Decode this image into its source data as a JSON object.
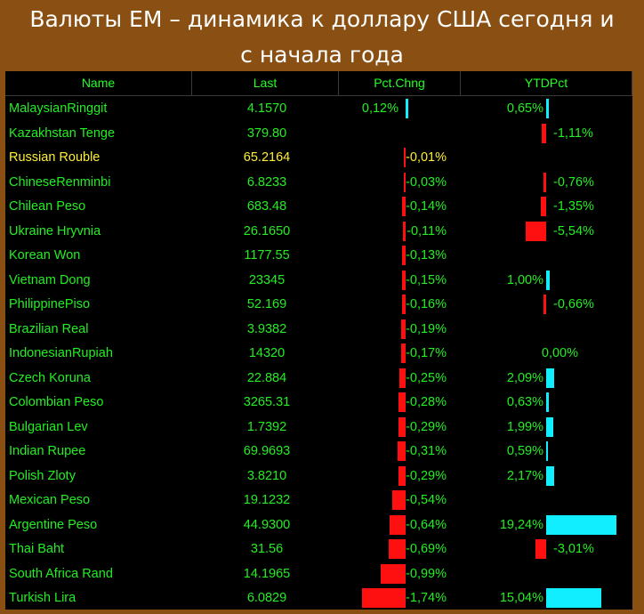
{
  "title_line1": "Валюты ЕМ – динамика к доллару США сегодня и",
  "title_line2": "с начала года",
  "columns": [
    "Name",
    "Last",
    "Pct.Chng",
    "YTDPct"
  ],
  "colors": {
    "background": "#8a4f12",
    "panel": "#000000",
    "text_green": "#22ee22",
    "highlight_yellow": "#ffee33",
    "negative_bar": "#ff1010",
    "positive_bar": "#11eeff"
  },
  "rows": [
    {
      "name": "MalaysianRinggit",
      "last": "4.1570",
      "pct": "0,12%",
      "pct_value": 0.12,
      "ytd": "0,65%",
      "ytd_value": 0.65
    },
    {
      "name": "Kazakhstan Tenge",
      "last": "379.80",
      "pct": "",
      "pct_value": 0,
      "ytd": "-1,11%",
      "ytd_value": -1.11
    },
    {
      "name": "Russian Rouble",
      "last": "65.2164",
      "pct": "-0,01%",
      "pct_value": -0.01,
      "ytd": "",
      "ytd_value": 0,
      "highlight": true
    },
    {
      "name": "ChineseRenminbi",
      "last": "6.8233",
      "pct": "-0,03%",
      "pct_value": -0.03,
      "ytd": "-0,76%",
      "ytd_value": -0.76
    },
    {
      "name": "Chilean Peso",
      "last": "683.48",
      "pct": "-0,14%",
      "pct_value": -0.14,
      "ytd": "-1,35%",
      "ytd_value": -1.35
    },
    {
      "name": "Ukraine Hryvnia",
      "last": "26.1650",
      "pct": "-0,11%",
      "pct_value": -0.11,
      "ytd": "-5,54%",
      "ytd_value": -5.54
    },
    {
      "name": "Korean Won",
      "last": "1177.55",
      "pct": "-0,13%",
      "pct_value": -0.13,
      "ytd": "",
      "ytd_value": 0
    },
    {
      "name": "Vietnam Dong",
      "last": "23345",
      "pct": "-0,15%",
      "pct_value": -0.15,
      "ytd": "1,00%",
      "ytd_value": 1.0
    },
    {
      "name": "PhilippinePiso",
      "last": "52.169",
      "pct": "-0,16%",
      "pct_value": -0.16,
      "ytd": "-0,66%",
      "ytd_value": -0.66
    },
    {
      "name": "Brazilian Real",
      "last": "3.9382",
      "pct": "-0,19%",
      "pct_value": -0.19,
      "ytd": "",
      "ytd_value": 0
    },
    {
      "name": "IndonesianRupiah",
      "last": "14320",
      "pct": "-0,17%",
      "pct_value": -0.17,
      "ytd": "0,00%",
      "ytd_value": 0.0
    },
    {
      "name": "Czech Koruna",
      "last": "22.884",
      "pct": "-0,25%",
      "pct_value": -0.25,
      "ytd": "2,09%",
      "ytd_value": 2.09
    },
    {
      "name": "Colombian Peso",
      "last": "3265.31",
      "pct": "-0,28%",
      "pct_value": -0.28,
      "ytd": "0,63%",
      "ytd_value": 0.63
    },
    {
      "name": "Bulgarian Lev",
      "last": "1.7392",
      "pct": "-0,29%",
      "pct_value": -0.29,
      "ytd": "1,99%",
      "ytd_value": 1.99
    },
    {
      "name": "Indian Rupee",
      "last": "69.9693",
      "pct": "-0,31%",
      "pct_value": -0.31,
      "ytd": "0,59%",
      "ytd_value": 0.59
    },
    {
      "name": "Polish Zloty",
      "last": "3.8210",
      "pct": "-0,29%",
      "pct_value": -0.29,
      "ytd": "2,17%",
      "ytd_value": 2.17
    },
    {
      "name": "Mexican Peso",
      "last": "19.1232",
      "pct": "-0,54%",
      "pct_value": -0.54,
      "ytd": "",
      "ytd_value": 0
    },
    {
      "name": "Argentine Peso",
      "last": "44.9300",
      "pct": "-0,64%",
      "pct_value": -0.64,
      "ytd": "19,24%",
      "ytd_value": 19.24
    },
    {
      "name": "Thai Baht",
      "last": "31.56",
      "pct": "-0,69%",
      "pct_value": -0.69,
      "ytd": "-3,01%",
      "ytd_value": -3.01
    },
    {
      "name": "South Africa Rand",
      "last": "14.1965",
      "pct": "-0,99%",
      "pct_value": -0.99,
      "ytd": "",
      "ytd_value": 0
    },
    {
      "name": "Turkish Lira",
      "last": "6.0829",
      "pct": "-1,74%",
      "pct_value": -1.74,
      "ytd": "15,04%",
      "ytd_value": 15.04
    }
  ]
}
